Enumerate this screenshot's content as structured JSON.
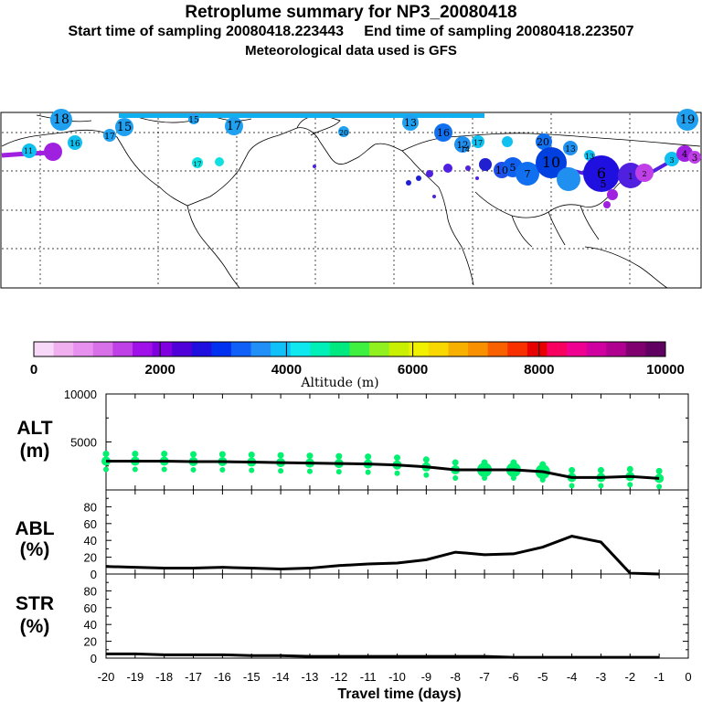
{
  "header": {
    "title": "Retroplume summary for NP3_20080418",
    "start_label": "Start time of sampling 20080418.223443",
    "end_label": "End time of sampling 20080418.223507",
    "met_label": "Meteorological data used is GFS"
  },
  "map": {
    "plume_label_numbers": [
      "18",
      "15",
      "15",
      "17",
      "13",
      "19",
      "16",
      "12",
      "17",
      "20",
      "11",
      "16",
      "17",
      "13",
      "10",
      "13",
      "5",
      "6",
      "10",
      "5",
      "1",
      "2",
      "3",
      "4",
      "3",
      "7",
      "14",
      "20",
      "17"
    ]
  },
  "colorbar": {
    "title": "Altitude (m)",
    "tick_labels": [
      "0",
      "2000",
      "4000",
      "6000",
      "8000",
      "10000"
    ],
    "colors": [
      "#f8d8f8",
      "#f0b0f0",
      "#e890f0",
      "#d870e8",
      "#c040e8",
      "#a010e8",
      "#8000e0",
      "#5000d8",
      "#2010e0",
      "#0030f0",
      "#1060f8",
      "#2090f8",
      "#10c0f8",
      "#10e8f0",
      "#00f0b8",
      "#00e880",
      "#40f040",
      "#90f020",
      "#c8f000",
      "#f0f000",
      "#f8d800",
      "#f8b000",
      "#f89000",
      "#f86000",
      "#f83000",
      "#e80000",
      "#f80060",
      "#f00090",
      "#d000a0",
      "#b00090",
      "#800070",
      "#600060"
    ]
  },
  "chart_data": [
    {
      "type": "line",
      "panel": "ALT",
      "ylabel_lines": [
        "ALT",
        "(m)"
      ],
      "yticks": [
        "10000",
        "5000"
      ],
      "ylim": [
        0,
        10000
      ],
      "x": [
        -20,
        -19,
        -18,
        -17,
        -16,
        -15,
        -14,
        -13,
        -12,
        -11,
        -10,
        -9,
        -8,
        -7,
        -6,
        -5,
        -4,
        -3,
        -2,
        -1
      ],
      "values": [
        3000,
        3000,
        3000,
        2950,
        2950,
        2900,
        2850,
        2800,
        2750,
        2700,
        2600,
        2400,
        2100,
        2100,
        2100,
        1900,
        1300,
        1300,
        1400,
        1200
      ],
      "dot_color": "#00f070"
    },
    {
      "type": "line",
      "panel": "ABL",
      "ylabel_lines": [
        "ABL",
        "(%)"
      ],
      "yticks": [
        "80",
        "60",
        "40",
        "20",
        "0"
      ],
      "ylim": [
        0,
        100
      ],
      "x": [
        -20,
        -19,
        -18,
        -17,
        -16,
        -15,
        -14,
        -13,
        -12,
        -11,
        -10,
        -9,
        -8,
        -7,
        -6,
        -5,
        -4,
        -3,
        -2,
        -1
      ],
      "values": [
        9,
        8,
        7,
        7,
        8,
        7,
        6,
        7,
        10,
        12,
        13,
        17,
        26,
        23,
        24,
        32,
        45,
        38,
        1,
        0
      ]
    },
    {
      "type": "line",
      "panel": "STR",
      "ylabel_lines": [
        "STR",
        "(%)"
      ],
      "yticks": [
        "80",
        "60",
        "40",
        "20",
        "0"
      ],
      "ylim": [
        0,
        100
      ],
      "x": [
        -20,
        -19,
        -18,
        -17,
        -16,
        -15,
        -14,
        -13,
        -12,
        -11,
        -10,
        -9,
        -8,
        -7,
        -6,
        -5,
        -4,
        -3,
        -2,
        -1
      ],
      "values": [
        5,
        5,
        4,
        4,
        4,
        3,
        3,
        2,
        2,
        2,
        2,
        2,
        2,
        2,
        1,
        1,
        1,
        1,
        1,
        1
      ]
    }
  ],
  "xaxis": {
    "label": "Travel time (days)",
    "tick_labels": [
      "-20",
      "-19",
      "-18",
      "-17",
      "-16",
      "-15",
      "-14",
      "-13",
      "-12",
      "-11",
      "-10",
      "-9",
      "-8",
      "-7",
      "-6",
      "-5",
      "-4",
      "-3",
      "-2",
      "-1",
      "0"
    ]
  }
}
